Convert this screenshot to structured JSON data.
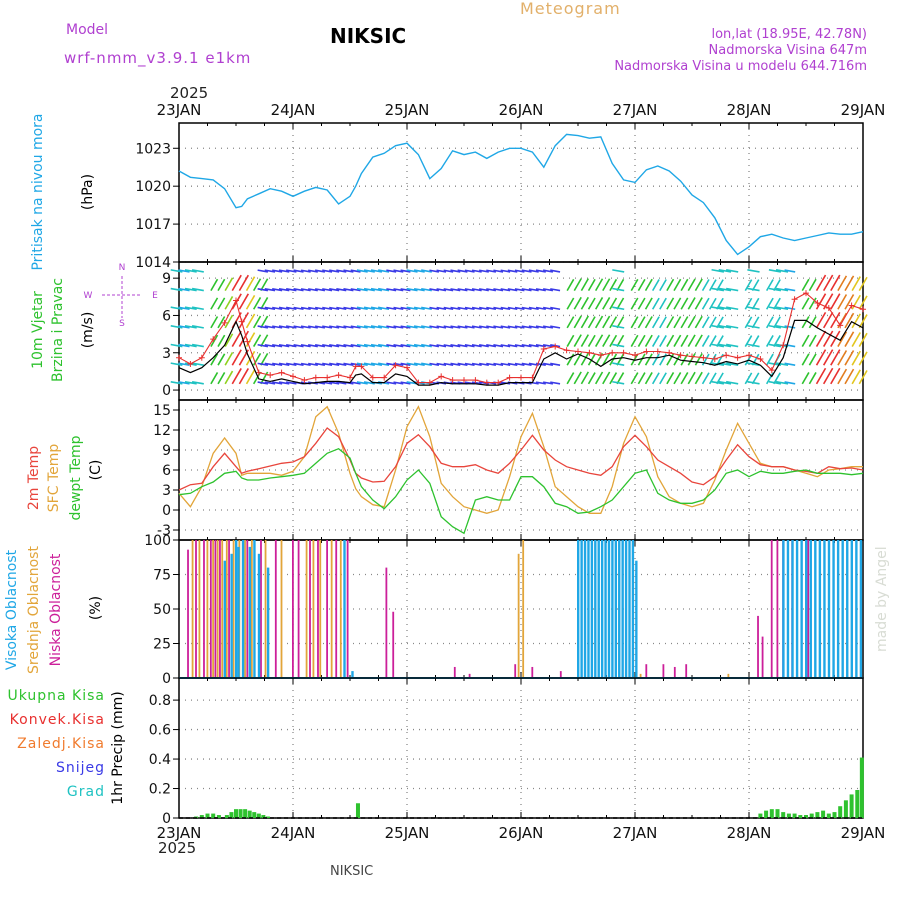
{
  "header": {
    "model_label": "Model",
    "model_name": "wrf-nmm_v3.9.1 e1km",
    "station": "NIKSIC",
    "product": "Meteogram",
    "lonlat": "lon,lat (18.95E, 42.78N)",
    "elevation": "Nadmorska Visina 647m",
    "model_elevation": "Nadmorska Visina u modelu 644.716m",
    "footer_station": "NIKSIC",
    "watermark": "made by Angel"
  },
  "time_axis": {
    "year": "2025",
    "labels": [
      "23JAN",
      "24JAN",
      "25JAN",
      "26JAN",
      "27JAN",
      "28JAN",
      "29JAN"
    ]
  },
  "colors": {
    "pressure": "#1fa7e6",
    "wind_speed": "#000000",
    "gust": "#e8302f",
    "t2m": "#e8453c",
    "sfc_temp": "#e2a53a",
    "dewpoint": "#2ec22e",
    "high_cloud": "#1fa7e6",
    "mid_cloud": "#e2a53a",
    "low_cloud": "#cc1f9a",
    "precip_total": "#2ec22e",
    "precip_conv": "#e8302f",
    "precip_frz": "#f07b2e",
    "precip_snow": "#3a3ae6",
    "precip_grad": "#1fc2c2",
    "wind_compass": "#b040d0"
  },
  "chart_data": [
    {
      "type": "line",
      "panel": "pressure",
      "ylabel_lines": [
        "Pritisak na nivou mora",
        "(hPa)"
      ],
      "yticks": [
        "1023",
        "1020",
        "1017",
        "1014"
      ],
      "ylim": [
        1014,
        1025
      ],
      "x_days": [
        0,
        0.1,
        0.2,
        0.3,
        0.4,
        0.5,
        0.55,
        0.6,
        0.7,
        0.8,
        0.9,
        1.0,
        1.1,
        1.2,
        1.3,
        1.4,
        1.5,
        1.55,
        1.6,
        1.7,
        1.8,
        1.9,
        2.0,
        2.1,
        2.2,
        2.3,
        2.4,
        2.5,
        2.6,
        2.7,
        2.8,
        2.9,
        3.0,
        3.1,
        3.2,
        3.3,
        3.4,
        3.5,
        3.6,
        3.7,
        3.8,
        3.9,
        4.0,
        4.1,
        4.2,
        4.3,
        4.4,
        4.5,
        4.6,
        4.7,
        4.8,
        4.9,
        5.0,
        5.1,
        5.2,
        5.3,
        5.4,
        5.5,
        5.6,
        5.7,
        5.8,
        5.9,
        6.0
      ],
      "series": [
        {
          "values": [
            1021.2,
            1020.7,
            1020.6,
            1020.5,
            1019.8,
            1018.3,
            1018.4,
            1019.0,
            1019.4,
            1019.8,
            1019.6,
            1019.2,
            1019.6,
            1019.9,
            1019.7,
            1018.6,
            1019.2,
            1020.0,
            1021.0,
            1022.3,
            1022.6,
            1023.2,
            1023.4,
            1022.5,
            1020.6,
            1021.4,
            1022.8,
            1022.5,
            1022.7,
            1022.2,
            1022.7,
            1023.0,
            1023.0,
            1022.7,
            1021.5,
            1023.2,
            1024.1,
            1024.0,
            1023.8,
            1023.9,
            1021.8,
            1020.5,
            1020.3,
            1021.3,
            1021.6,
            1021.2,
            1020.4,
            1019.3,
            1018.7,
            1017.5,
            1015.7,
            1014.6,
            1015.2,
            1016.0,
            1016.2,
            1015.9,
            1015.7,
            1015.9,
            1016.1,
            1016.3,
            1016.2,
            1016.2,
            1016.4
          ]
        }
      ]
    },
    {
      "type": "line",
      "panel": "wind",
      "ylabel_lines": [
        "10m Vjetar",
        "Brzina i Pravac",
        "(m/s)"
      ],
      "compass_labels": [
        "N",
        "W",
        "E",
        "S"
      ],
      "yticks": [
        "9",
        "6",
        "3",
        "0"
      ],
      "ylim": [
        -0.8,
        10.3
      ],
      "x_days": [
        0,
        0.1,
        0.2,
        0.3,
        0.4,
        0.5,
        0.55,
        0.6,
        0.7,
        0.8,
        0.9,
        1.0,
        1.1,
        1.2,
        1.3,
        1.4,
        1.5,
        1.55,
        1.6,
        1.7,
        1.8,
        1.9,
        2.0,
        2.1,
        2.2,
        2.3,
        2.4,
        2.5,
        2.6,
        2.7,
        2.8,
        2.9,
        3.0,
        3.1,
        3.2,
        3.3,
        3.4,
        3.5,
        3.6,
        3.7,
        3.8,
        3.9,
        4.0,
        4.1,
        4.2,
        4.3,
        4.4,
        4.5,
        4.6,
        4.7,
        4.8,
        4.9,
        5.0,
        5.1,
        5.2,
        5.3,
        5.4,
        5.5,
        5.6,
        5.7,
        5.8,
        5.9,
        6.0
      ],
      "series": [
        {
          "name": "speed",
          "values": [
            1.8,
            1.4,
            1.8,
            2.6,
            3.6,
            5.5,
            4.4,
            2.9,
            0.9,
            0.7,
            0.9,
            0.7,
            0.5,
            0.6,
            0.7,
            0.7,
            0.6,
            1.2,
            1.3,
            0.6,
            0.6,
            1.3,
            1.1,
            0.4,
            0.4,
            0.6,
            0.5,
            0.5,
            0.5,
            0.4,
            0.4,
            0.6,
            0.6,
            0.6,
            2.5,
            3.0,
            2.5,
            2.9,
            2.5,
            1.9,
            2.5,
            2.6,
            2.4,
            2.6,
            2.6,
            2.8,
            2.4,
            2.3,
            2.2,
            2.0,
            2.3,
            2.1,
            2.4,
            2.0,
            1.1,
            2.6,
            5.6,
            5.6,
            5.0,
            4.5,
            4.0,
            5.5,
            5.0
          ]
        },
        {
          "name": "gust",
          "values": [
            2.6,
            2.1,
            2.6,
            4.1,
            5.4,
            7.2,
            5.5,
            3.9,
            1.4,
            1.2,
            1.4,
            1.1,
            0.8,
            1.0,
            1.0,
            1.2,
            1.0,
            1.9,
            1.9,
            1.0,
            1.0,
            2.0,
            1.8,
            0.6,
            0.6,
            1.1,
            0.8,
            0.8,
            0.8,
            0.6,
            0.6,
            1.0,
            1.0,
            1.0,
            3.3,
            3.5,
            3.2,
            3.1,
            3.0,
            2.8,
            3.0,
            3.0,
            2.8,
            3.1,
            3.1,
            3.0,
            2.8,
            2.7,
            2.6,
            2.5,
            2.8,
            2.6,
            2.8,
            2.5,
            1.6,
            3.6,
            7.3,
            7.8,
            7.0,
            6.6,
            5.2,
            6.8,
            6.5
          ]
        }
      ],
      "arrow_rows": [
        0.5,
        2,
        3.5,
        5,
        6.5,
        8,
        9.5
      ]
    },
    {
      "type": "line",
      "panel": "temperature",
      "ylabel_lines": [
        "2m Temp",
        "SFC Temp",
        "dewpt Temp",
        "(C)"
      ],
      "yticks": [
        "15",
        "12",
        "9",
        "6",
        "3",
        "0",
        "-3"
      ],
      "ylim": [
        -4.5,
        16.5
      ],
      "x_days": [
        0,
        0.1,
        0.2,
        0.3,
        0.4,
        0.5,
        0.55,
        0.6,
        0.7,
        0.8,
        0.9,
        1.0,
        1.1,
        1.2,
        1.3,
        1.4,
        1.5,
        1.55,
        1.6,
        1.7,
        1.8,
        1.9,
        2.0,
        2.1,
        2.2,
        2.3,
        2.4,
        2.5,
        2.6,
        2.7,
        2.8,
        2.9,
        3.0,
        3.1,
        3.2,
        3.3,
        3.4,
        3.5,
        3.6,
        3.7,
        3.8,
        3.9,
        4.0,
        4.1,
        4.2,
        4.3,
        4.4,
        4.5,
        4.6,
        4.7,
        4.8,
        4.9,
        5.0,
        5.1,
        5.2,
        5.3,
        5.4,
        5.5,
        5.6,
        5.7,
        5.8,
        5.9,
        6.0
      ],
      "series": [
        {
          "name": "2m",
          "values": [
            3.0,
            3.8,
            4.0,
            6.5,
            8.5,
            6.5,
            5.5,
            5.8,
            6.2,
            6.6,
            7.0,
            7.2,
            8.0,
            10.0,
            12.3,
            11.0,
            7.5,
            5.5,
            4.8,
            4.2,
            4.3,
            6.5,
            10.0,
            11.3,
            9.5,
            7.0,
            6.5,
            6.5,
            6.8,
            6.0,
            5.5,
            7.0,
            9.0,
            11.2,
            9.0,
            7.5,
            6.5,
            6.0,
            5.5,
            5.2,
            6.5,
            9.5,
            11.2,
            9.5,
            7.5,
            6.5,
            5.5,
            4.2,
            3.8,
            5.0,
            7.5,
            9.8,
            8.0,
            6.8,
            6.5,
            6.5,
            6.0,
            5.8,
            5.5,
            6.5,
            6.2,
            6.3,
            6.0
          ]
        },
        {
          "name": "sfc",
          "values": [
            2.5,
            0.5,
            3.5,
            8.5,
            10.8,
            8.5,
            5.2,
            5.5,
            5.5,
            5.5,
            5.2,
            5.8,
            8.0,
            14.0,
            15.5,
            11.5,
            5.5,
            3.2,
            2.0,
            0.8,
            0.5,
            6.0,
            12.5,
            15.5,
            11.0,
            4.0,
            2.0,
            0.5,
            0.0,
            -0.5,
            0.0,
            5.0,
            11.0,
            14.5,
            9.5,
            3.5,
            2.0,
            0.5,
            -0.5,
            -0.5,
            3.5,
            10.0,
            14.0,
            11.0,
            5.0,
            2.0,
            1.0,
            0.5,
            1.0,
            4.5,
            9.0,
            13.0,
            10.0,
            7.0,
            6.5,
            6.5,
            6.0,
            5.5,
            5.0,
            6.0,
            6.2,
            6.5,
            6.5
          ]
        },
        {
          "name": "dewpt",
          "values": [
            2.3,
            2.5,
            3.5,
            4.2,
            5.5,
            5.8,
            4.8,
            4.5,
            4.5,
            4.8,
            5.0,
            5.2,
            5.5,
            7.0,
            8.5,
            9.2,
            7.8,
            5.5,
            3.5,
            1.5,
            0.2,
            2.0,
            4.5,
            6.0,
            4.0,
            -1.0,
            -2.5,
            -3.5,
            1.5,
            2.0,
            1.5,
            1.5,
            5.0,
            5.0,
            3.5,
            1.0,
            0.5,
            -0.5,
            -0.3,
            0.5,
            1.5,
            3.5,
            5.5,
            6.0,
            2.5,
            1.5,
            1.0,
            1.0,
            1.5,
            3.0,
            5.5,
            6.0,
            5.0,
            5.8,
            5.5,
            5.5,
            5.8,
            6.0,
            5.5,
            5.5,
            5.5,
            5.3,
            5.5
          ]
        }
      ]
    },
    {
      "type": "bar",
      "panel": "cloud",
      "ylabel_lines": [
        "Visoka Oblacnost",
        "Srednja Oblacnost",
        "Niska Oblacnost",
        "(%)"
      ],
      "yticks": [
        "100",
        "75",
        "50",
        "25",
        "0"
      ],
      "ylim": [
        0,
        100
      ],
      "series": [
        {
          "name": "low",
          "x": [
            0.08,
            0.15,
            0.22,
            0.28,
            0.32,
            0.36,
            0.44,
            0.5,
            0.6,
            0.72,
            0.85,
            1.0,
            1.05,
            1.15,
            1.22,
            1.3,
            1.38,
            1.48,
            1.82,
            1.88,
            2.42,
            2.55,
            2.95,
            3.1,
            3.35,
            4.1,
            4.25,
            4.35,
            4.45,
            5.08,
            5.12,
            5.2,
            5.25,
            5.3,
            5.38,
            5.52
          ],
          "values": [
            93,
            100,
            100,
            100,
            100,
            100,
            100,
            100,
            100,
            100,
            100,
            100,
            100,
            100,
            100,
            100,
            100,
            100,
            80,
            48,
            8,
            3,
            10,
            8,
            5,
            10,
            10,
            8,
            10,
            45,
            30,
            100,
            100,
            100,
            100,
            100
          ]
        },
        {
          "name": "mid",
          "x": [
            0.12,
            0.18,
            0.25,
            0.3,
            0.34,
            0.38,
            0.42,
            0.48,
            0.53,
            0.58,
            0.64,
            0.76,
            0.9,
            1.12,
            1.18,
            1.24,
            1.34,
            1.42,
            2.98,
            3.02,
            4.05,
            4.82
          ],
          "values": [
            100,
            100,
            100,
            100,
            100,
            100,
            100,
            100,
            100,
            100,
            100,
            100,
            100,
            100,
            100,
            100,
            100,
            100,
            90,
            100,
            3,
            3
          ]
        },
        {
          "name": "high",
          "x": [
            0.4,
            0.46,
            0.5,
            0.52,
            0.56,
            0.62,
            0.66,
            0.7,
            0.78,
            1.45,
            1.52,
            3.5,
            3.53,
            3.56,
            3.59,
            3.62,
            3.65,
            3.68,
            3.71,
            3.74,
            3.77,
            3.8,
            3.83,
            3.86,
            3.89,
            3.92,
            3.95,
            3.98,
            4.01,
            5.3,
            5.34,
            5.38,
            5.42,
            5.46,
            5.5,
            5.54,
            5.58,
            5.62,
            5.66,
            5.7,
            5.74,
            5.78,
            5.82,
            5.86,
            5.9,
            5.94,
            5.98
          ],
          "values": [
            85,
            90,
            100,
            95,
            100,
            95,
            100,
            90,
            80,
            100,
            5,
            100,
            100,
            100,
            100,
            100,
            100,
            100,
            100,
            100,
            100,
            100,
            100,
            100,
            100,
            100,
            100,
            100,
            85,
            100,
            100,
            100,
            100,
            100,
            100,
            100,
            100,
            100,
            100,
            100,
            100,
            100,
            100,
            100,
            100,
            100,
            100
          ]
        }
      ]
    },
    {
      "type": "bar",
      "panel": "precip",
      "ylabel_lines": [
        "1hr Precip (mm)"
      ],
      "legend": [
        "Ukupna Kisa",
        "Konvek.Kisa",
        "Zaledj.Kisa",
        "Snijeg",
        "Grad"
      ],
      "yticks": [
        "0.8",
        "0.6",
        "0.4",
        "0.2",
        "0"
      ],
      "ylim": [
        0,
        0.95
      ],
      "series": [
        {
          "name": "total",
          "x": [
            0.15,
            0.2,
            0.25,
            0.3,
            0.35,
            0.42,
            0.46,
            0.5,
            0.54,
            0.58,
            0.62,
            0.66,
            0.7,
            0.74,
            0.78,
            1.57,
            5.1,
            5.15,
            5.2,
            5.25,
            5.3,
            5.35,
            5.4,
            5.45,
            5.5,
            5.55,
            5.6,
            5.65,
            5.7,
            5.75,
            5.8,
            5.85,
            5.9,
            5.95,
            5.99
          ],
          "values": [
            0.01,
            0.02,
            0.03,
            0.03,
            0.02,
            0.02,
            0.04,
            0.06,
            0.06,
            0.06,
            0.05,
            0.04,
            0.03,
            0.02,
            0.01,
            0.1,
            0.03,
            0.05,
            0.06,
            0.06,
            0.04,
            0.03,
            0.03,
            0.02,
            0.02,
            0.03,
            0.04,
            0.05,
            0.03,
            0.04,
            0.08,
            0.12,
            0.16,
            0.19,
            0.41
          ]
        }
      ]
    }
  ]
}
